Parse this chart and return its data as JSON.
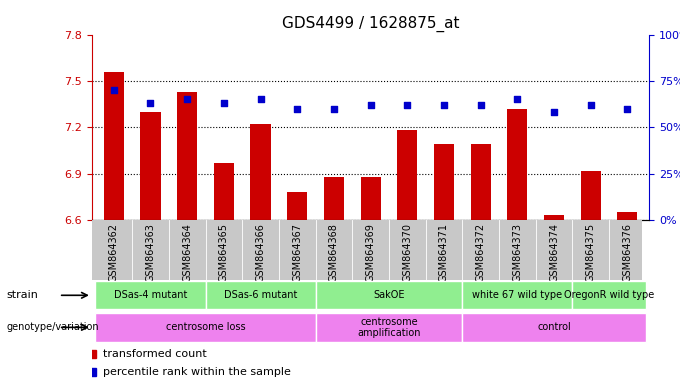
{
  "title": "GDS4499 / 1628875_at",
  "samples": [
    "GSM864362",
    "GSM864363",
    "GSM864364",
    "GSM864365",
    "GSM864366",
    "GSM864367",
    "GSM864368",
    "GSM864369",
    "GSM864370",
    "GSM864371",
    "GSM864372",
    "GSM864373",
    "GSM864374",
    "GSM864375",
    "GSM864376"
  ],
  "red_values": [
    7.56,
    7.3,
    7.43,
    6.97,
    7.22,
    6.78,
    6.88,
    6.88,
    7.18,
    7.09,
    7.09,
    7.32,
    6.63,
    6.92,
    6.65
  ],
  "blue_values": [
    70,
    63,
    65,
    63,
    65,
    60,
    60,
    62,
    62,
    62,
    62,
    65,
    58,
    62,
    60
  ],
  "ylim_left": [
    6.6,
    7.8
  ],
  "ylim_right": [
    0,
    100
  ],
  "yticks_left": [
    6.6,
    6.9,
    7.2,
    7.5,
    7.8
  ],
  "yticks_right": [
    0,
    25,
    50,
    75,
    100
  ],
  "ytick_labels_right": [
    "0%",
    "25%",
    "50%",
    "75%",
    "100%"
  ],
  "bar_color": "#CC0000",
  "dot_color": "#0000CC",
  "tick_color_left": "#CC0000",
  "tick_color_right": "#0000CC",
  "strain_defs": [
    [
      0,
      3,
      "DSas-4 mutant"
    ],
    [
      3,
      3,
      "DSas-6 mutant"
    ],
    [
      6,
      4,
      "SakOE"
    ],
    [
      10,
      3,
      "white 67 wild type"
    ],
    [
      13,
      2,
      "OregonR wild type"
    ]
  ],
  "geno_defs": [
    [
      0,
      6,
      "centrosome loss"
    ],
    [
      6,
      4,
      "centrosome\namplification"
    ],
    [
      10,
      5,
      "control"
    ]
  ],
  "strain_color": "#90EE90",
  "geno_color": "#EE82EE",
  "xtick_bg": "#C8C8C8"
}
